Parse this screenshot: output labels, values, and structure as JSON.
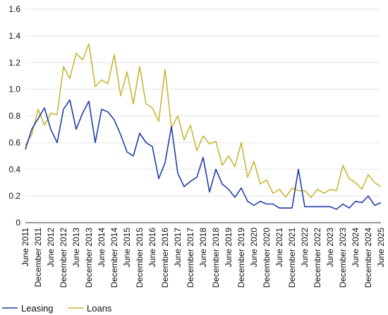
{
  "chart_data": {
    "type": "line",
    "title": "",
    "xlabel": "",
    "ylabel": "",
    "ylim": [
      0,
      1.6
    ],
    "yticks": [
      "0",
      "0.2",
      "0.4",
      "0.6",
      "0.8",
      "1.0",
      "1.2",
      "1.4",
      "1.6"
    ],
    "grid": "horizontal",
    "legend_position": "bottom-left",
    "x_tick_labels": [
      "June 2011",
      "December 2011",
      "June 2012",
      "December 2012",
      "June 2013",
      "December 2013",
      "June 2014",
      "December 2014",
      "June 2015",
      "December 2015",
      "June 2016",
      "December 2016",
      "June 2017",
      "December 2017",
      "June 2018",
      "December 2018",
      "June 2019",
      "December 2019",
      "June 2020",
      "December 2020",
      "June 2021",
      "December 2021",
      "June 2022",
      "December 2022",
      "June 2023",
      "December 2023",
      "June 2024",
      "December 2024",
      "June 2025"
    ],
    "x_period": "quarterly",
    "x_start": "June 2011",
    "series": [
      {
        "name": "Leasing",
        "color": "#1f3fa6",
        "values": [
          0.55,
          0.7,
          0.78,
          0.86,
          0.7,
          0.6,
          0.85,
          0.92,
          0.7,
          0.82,
          0.91,
          0.6,
          0.85,
          0.83,
          0.77,
          0.66,
          0.53,
          0.5,
          0.67,
          0.6,
          0.57,
          0.33,
          0.45,
          0.72,
          0.37,
          0.27,
          0.31,
          0.34,
          0.49,
          0.23,
          0.4,
          0.29,
          0.25,
          0.19,
          0.26,
          0.16,
          0.13,
          0.16,
          0.14,
          0.14,
          0.11,
          0.11,
          0.11,
          0.4,
          0.12,
          0.12,
          0.12,
          0.12,
          0.12,
          0.1,
          0.14,
          0.11,
          0.16,
          0.15,
          0.2,
          0.13,
          0.15
        ]
      },
      {
        "name": "Loans",
        "color": "#c9b73a",
        "values": [
          0.58,
          0.66,
          0.85,
          0.73,
          0.82,
          0.81,
          1.17,
          1.08,
          1.27,
          1.22,
          1.34,
          1.02,
          1.07,
          1.04,
          1.26,
          0.95,
          1.13,
          0.89,
          1.17,
          0.89,
          0.86,
          0.76,
          1.15,
          0.71,
          0.8,
          0.62,
          0.73,
          0.54,
          0.65,
          0.59,
          0.61,
          0.43,
          0.5,
          0.42,
          0.6,
          0.34,
          0.46,
          0.29,
          0.32,
          0.22,
          0.25,
          0.19,
          0.26,
          0.24,
          0.24,
          0.19,
          0.25,
          0.22,
          0.25,
          0.24,
          0.43,
          0.33,
          0.3,
          0.25,
          0.36,
          0.3,
          0.27
        ]
      }
    ]
  }
}
